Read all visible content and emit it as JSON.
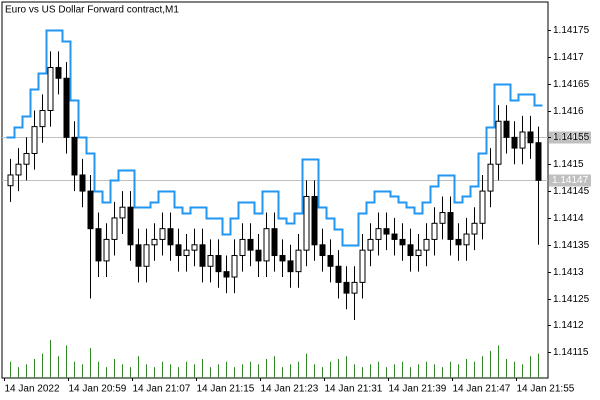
{
  "chart_data": {
    "type": "candlestick",
    "title": "Euro vs US Dollar Forward contract,M1",
    "categories": [
      "14 Jan 2022",
      null,
      null,
      null,
      null,
      null,
      null,
      null,
      "14 Jan 20:59",
      null,
      null,
      null,
      null,
      null,
      null,
      null,
      "14 Jan 21:07",
      null,
      null,
      null,
      null,
      null,
      null,
      null,
      "14 Jan 21:15",
      null,
      null,
      null,
      null,
      null,
      null,
      null,
      "14 Jan 21:23",
      null,
      null,
      null,
      null,
      null,
      null,
      null,
      "14 Jan 21:31",
      null,
      null,
      null,
      null,
      null,
      null,
      null,
      "14 Jan 21:39",
      null,
      null,
      null,
      null,
      null,
      null,
      null,
      "14 Jan 21:47",
      null,
      null,
      null,
      null,
      null,
      null,
      null,
      "14 Jan 21:55",
      null,
      null
    ],
    "open": [
      1.14146,
      1.14148,
      1.1415,
      1.14152,
      1.14157,
      1.1416,
      1.14168,
      1.14166,
      1.14155,
      1.14148,
      1.14145,
      1.14138,
      1.14132,
      1.14136,
      1.1414,
      1.14142,
      1.14135,
      1.14131,
      1.14135,
      1.14136,
      1.14138,
      1.14135,
      1.14133,
      1.14134,
      1.14135,
      1.14131,
      1.14133,
      1.1413,
      1.14129,
      1.14133,
      1.14136,
      1.14134,
      1.14132,
      1.14138,
      1.14133,
      1.14132,
      1.1413,
      1.14134,
      1.14144,
      1.14135,
      1.14133,
      1.14131,
      1.14128,
      1.14126,
      1.14128,
      1.14134,
      1.14136,
      1.14138,
      1.14137,
      1.14136,
      1.14135,
      1.14133,
      1.14134,
      1.14136,
      1.14139,
      1.14141,
      1.14136,
      1.14135,
      1.14137,
      1.14139,
      1.14145,
      1.1415,
      1.14158,
      1.14155,
      1.14153,
      1.14156,
      1.14154
    ],
    "high": [
      1.14151,
      1.14153,
      1.14155,
      1.1416,
      1.14163,
      1.14171,
      1.14171,
      1.14169,
      1.14158,
      1.14151,
      1.14148,
      1.14141,
      1.14139,
      1.14143,
      1.14145,
      1.14145,
      1.14138,
      1.14138,
      1.14139,
      1.14141,
      1.14141,
      1.14138,
      1.14137,
      1.14138,
      1.14138,
      1.14136,
      1.14136,
      1.14133,
      1.14136,
      1.14139,
      1.14139,
      1.14137,
      1.14141,
      1.14141,
      1.14136,
      1.14135,
      1.14137,
      1.14147,
      1.14147,
      1.14138,
      1.14136,
      1.14134,
      1.14131,
      1.14131,
      1.14137,
      1.14139,
      1.14141,
      1.14141,
      1.1414,
      1.14139,
      1.14138,
      1.14137,
      1.14139,
      1.14142,
      1.14144,
      1.14144,
      1.14139,
      1.1414,
      1.14142,
      1.14148,
      1.14153,
      1.14161,
      1.14161,
      1.14158,
      1.14159,
      1.14159,
      1.14157
    ],
    "low": [
      1.14143,
      1.14145,
      1.14147,
      1.14149,
      1.14154,
      1.14157,
      1.14163,
      1.14152,
      1.14145,
      1.14142,
      1.14125,
      1.14129,
      1.14129,
      1.14133,
      1.14137,
      1.14132,
      1.14128,
      1.14128,
      1.14132,
      1.14133,
      1.14132,
      1.1413,
      1.1413,
      1.14131,
      1.14128,
      1.14128,
      1.14127,
      1.14126,
      1.14126,
      1.1413,
      1.14131,
      1.14129,
      1.14129,
      1.1413,
      1.14129,
      1.14127,
      1.14127,
      1.14131,
      1.14132,
      1.1413,
      1.14128,
      1.14125,
      1.14123,
      1.14121,
      1.14125,
      1.14131,
      1.14133,
      1.14134,
      1.14133,
      1.14132,
      1.1413,
      1.1413,
      1.14131,
      1.14133,
      1.14136,
      1.14133,
      1.14132,
      1.14132,
      1.14134,
      1.14136,
      1.14142,
      1.14147,
      1.14152,
      1.1415,
      1.1415,
      1.14151,
      1.14135
    ],
    "close": [
      1.14148,
      1.1415,
      1.14152,
      1.14157,
      1.1416,
      1.14168,
      1.14166,
      1.14155,
      1.14148,
      1.14145,
      1.14138,
      1.14132,
      1.14136,
      1.1414,
      1.14142,
      1.14135,
      1.14131,
      1.14135,
      1.14136,
      1.14138,
      1.14135,
      1.14133,
      1.14134,
      1.14135,
      1.14131,
      1.14133,
      1.1413,
      1.14129,
      1.14133,
      1.14136,
      1.14134,
      1.14132,
      1.14138,
      1.14133,
      1.14132,
      1.1413,
      1.14134,
      1.14144,
      1.14135,
      1.14133,
      1.14131,
      1.14128,
      1.14126,
      1.14128,
      1.14134,
      1.14136,
      1.14138,
      1.14137,
      1.14136,
      1.14135,
      1.14133,
      1.14134,
      1.14136,
      1.14139,
      1.14141,
      1.14136,
      1.14135,
      1.14137,
      1.14139,
      1.14145,
      1.1415,
      1.14158,
      1.14155,
      1.14153,
      1.14156,
      1.14154,
      1.14147
    ],
    "ask": [
      1.14155,
      1.14157,
      1.14159,
      1.14164,
      1.14167,
      1.14175,
      1.14175,
      1.14173,
      1.14162,
      1.14155,
      1.14152,
      1.14145,
      1.14143,
      1.14147,
      1.14149,
      1.14149,
      1.14142,
      1.14142,
      1.14143,
      1.14145,
      1.14145,
      1.14142,
      1.14141,
      1.14142,
      1.14142,
      1.1414,
      1.1414,
      1.14137,
      1.1414,
      1.14143,
      1.14143,
      1.14141,
      1.14145,
      1.14145,
      1.1414,
      1.14139,
      1.14141,
      1.14151,
      1.14151,
      1.14142,
      1.1414,
      1.14138,
      1.14135,
      1.14135,
      1.14141,
      1.14143,
      1.14145,
      1.14145,
      1.14144,
      1.14143,
      1.14142,
      1.14141,
      1.14143,
      1.14146,
      1.14148,
      1.14148,
      1.14143,
      1.14144,
      1.14146,
      1.14152,
      1.14157,
      1.14165,
      1.14165,
      1.14162,
      1.14163,
      1.14163,
      1.14161
    ],
    "volume": [
      6,
      4,
      5,
      7,
      9,
      14,
      8,
      12,
      6,
      5,
      11,
      6,
      4,
      7,
      5,
      4,
      8,
      5,
      4,
      6,
      5,
      4,
      6,
      5,
      7,
      4,
      5,
      6,
      4,
      5,
      6,
      5,
      7,
      8,
      4,
      5,
      6,
      9,
      5,
      4,
      6,
      7,
      8,
      5,
      4,
      5,
      6,
      4,
      5,
      6,
      4,
      5,
      6,
      5,
      4,
      6,
      5,
      7,
      6,
      8,
      10,
      12,
      7,
      6,
      5,
      8,
      9
    ],
    "ylim": [
      1.141102,
      1.141802
    ],
    "yticks": [
      1.14115,
      1.1412,
      1.14125,
      1.1413,
      1.14135,
      1.1414,
      1.14145,
      1.1415,
      1.14155,
      1.1416,
      1.14165,
      1.1417,
      1.14175
    ],
    "price_lines": [
      1.14155,
      1.14147
    ],
    "colors": {
      "ask": "#2196f3",
      "volume": "#2e8b22",
      "bull": "#ffffff",
      "bear": "#000000",
      "price_line": "#c0c0c0"
    }
  }
}
